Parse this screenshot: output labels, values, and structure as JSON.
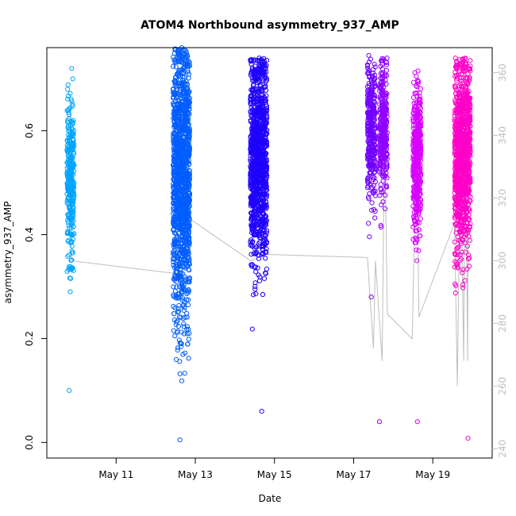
{
  "chart_data": {
    "type": "scatter",
    "title": "ATOM4 Northbound asymmetry_937_AMP",
    "xlabel": "Date",
    "ylabel": "asymmetry_937_AMP",
    "x_ticks": [
      "May 11",
      "May 13",
      "May 15",
      "May 17",
      "May 19"
    ],
    "x_tick_days": [
      11,
      13,
      15,
      17,
      19
    ],
    "xlim_days": [
      9.25,
      20.5
    ],
    "y_ticks": [
      "0.0",
      "0.2",
      "0.4",
      "0.6"
    ],
    "y_tick_values": [
      0.0,
      0.2,
      0.4,
      0.6
    ],
    "ylim": [
      -0.03,
      0.76
    ],
    "y2_ticks": [
      "240",
      "260",
      "280",
      "300",
      "320",
      "340",
      "360"
    ],
    "y2_tick_values": [
      240,
      260,
      280,
      300,
      320,
      340,
      360
    ],
    "y2lim": [
      237,
      368
    ],
    "clusters": [
      {
        "day": 9.85,
        "width": 0.18,
        "center": 0.5,
        "spread": 0.08,
        "min": 0.1,
        "max": 0.72,
        "n": 330,
        "color": "#00a5ff"
      },
      {
        "day": 12.65,
        "width": 0.42,
        "center": 0.5,
        "spread": 0.13,
        "min": 0.005,
        "max": 0.76,
        "n": 1300,
        "color": "#005dff"
      },
      {
        "day": 14.6,
        "width": 0.42,
        "center": 0.55,
        "spread": 0.1,
        "min": 0.06,
        "max": 0.74,
        "n": 1100,
        "color": "#1e00ff"
      },
      {
        "day": 17.45,
        "width": 0.2,
        "center": 0.6,
        "spread": 0.06,
        "min": 0.28,
        "max": 0.745,
        "n": 330,
        "color": "#7100ff"
      },
      {
        "day": 17.75,
        "width": 0.2,
        "center": 0.6,
        "spread": 0.06,
        "min": 0.04,
        "max": 0.74,
        "n": 330,
        "color": "#8f00ff"
      },
      {
        "day": 18.6,
        "width": 0.2,
        "center": 0.55,
        "spread": 0.07,
        "min": 0.04,
        "max": 0.715,
        "n": 420,
        "color": "#d800ff"
      },
      {
        "day": 19.75,
        "width": 0.4,
        "center": 0.55,
        "spread": 0.09,
        "min": 0.008,
        "max": 0.74,
        "n": 1000,
        "color": "#ff00c8"
      }
    ],
    "secondary_line": {
      "color": "#bebebe",
      "points": [
        {
          "day": 9.85,
          "y2": 351
        },
        {
          "day": 9.87,
          "y2": 300
        },
        {
          "day": 12.45,
          "y2": 296
        },
        {
          "day": 12.7,
          "y2": 300
        },
        {
          "day": 12.9,
          "y2": 313
        },
        {
          "day": 14.4,
          "y2": 300
        },
        {
          "day": 14.8,
          "y2": 302
        },
        {
          "day": 17.35,
          "y2": 301
        },
        {
          "day": 17.5,
          "y2": 272
        },
        {
          "day": 17.55,
          "y2": 300
        },
        {
          "day": 17.72,
          "y2": 268
        },
        {
          "day": 17.78,
          "y2": 345
        },
        {
          "day": 17.85,
          "y2": 283
        },
        {
          "day": 18.48,
          "y2": 275
        },
        {
          "day": 18.52,
          "y2": 300
        },
        {
          "day": 18.58,
          "y2": 350
        },
        {
          "day": 18.65,
          "y2": 282
        },
        {
          "day": 19.55,
          "y2": 312
        },
        {
          "day": 19.62,
          "y2": 260
        },
        {
          "day": 19.7,
          "y2": 338
        },
        {
          "day": 19.78,
          "y2": 268
        },
        {
          "day": 19.82,
          "y2": 352
        },
        {
          "day": 19.88,
          "y2": 268
        },
        {
          "day": 19.9,
          "y2": 356
        }
      ]
    }
  }
}
